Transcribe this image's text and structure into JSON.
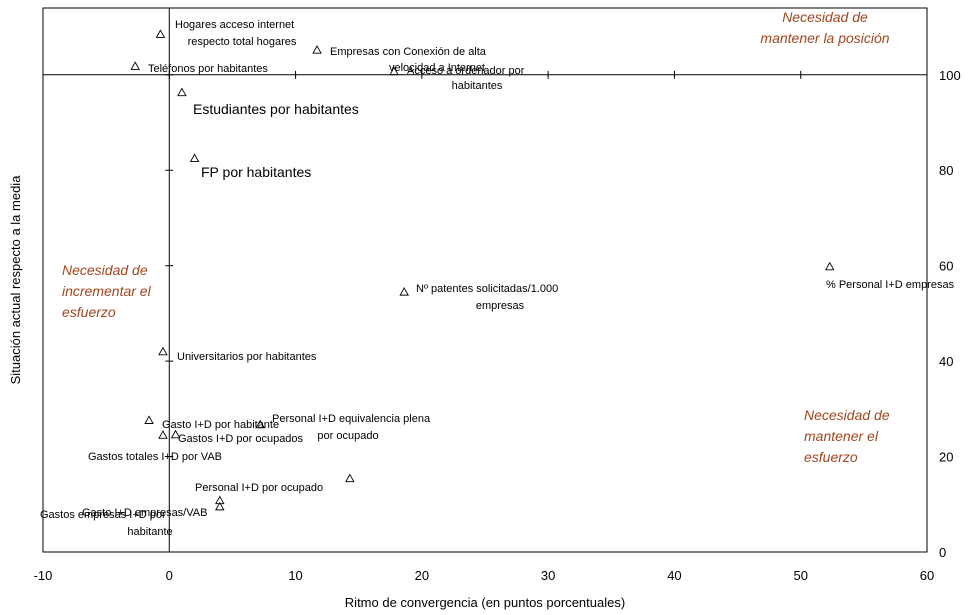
{
  "chart_data": {
    "type": "scatter",
    "xlabel": "Ritmo de convergencia (en puntos porcentuales)",
    "ylabel": "Situación actual respecto a la media",
    "xlim": [
      -10,
      60
    ],
    "ylim": [
      0,
      114
    ],
    "x_ticks": [
      -10,
      0,
      10,
      20,
      30,
      40,
      50,
      60
    ],
    "y_ticks": [
      0,
      20,
      40,
      60,
      80,
      100
    ],
    "origin": {
      "x": 0,
      "y": 100
    },
    "grid": false,
    "marker": "triangle",
    "points": [
      {
        "label": [
          "Hogares acceso internet",
          "respecto total hogares"
        ],
        "x": -0.7,
        "y": 108.5
      },
      {
        "label": [
          "Teléfonos por  habitantes"
        ],
        "x": -2.7,
        "y": 101.8
      },
      {
        "label": [
          "Empresas con Conexión de alta",
          "velocidad a Internet"
        ],
        "x": 11.7,
        "y": 105.2
      },
      {
        "label": [
          "Acceso a ordenador por",
          "habitantes"
        ],
        "x": 17.8,
        "y": 100.7
      },
      {
        "label": [
          "Estudiantes por habitantes"
        ],
        "x": 1.0,
        "y": 96.3
      },
      {
        "label": [
          "FP por  habitantes"
        ],
        "x": 2.0,
        "y": 82.5
      },
      {
        "label": [
          "% Personal I+D empresas"
        ],
        "x": 52.3,
        "y": 59.8
      },
      {
        "label": [
          "Nº patentes solicitadas/1.000",
          "empresas"
        ],
        "x": 18.6,
        "y": 54.5
      },
      {
        "label": [
          "Universitarios por  habitantes"
        ],
        "x": -0.5,
        "y": 42.0
      },
      {
        "label": [
          "Gasto I+D por habitante"
        ],
        "x": -1.6,
        "y": 27.6
      },
      {
        "label": [
          "Personal I+D equivalencia plena",
          "por ocupado"
        ],
        "x": 7.2,
        "y": 26.7
      },
      {
        "label": [
          "Gastos I+D por ocupados"
        ],
        "x": 0.5,
        "y": 24.6
      },
      {
        "label": [
          "Gastos totales I+D por VAB"
        ],
        "x": -0.5,
        "y": 24.5
      },
      {
        "label": [
          "Personal I+D por ocupado"
        ],
        "x": 14.3,
        "y": 15.4
      },
      {
        "label": [
          "Gasto I+D empresas/VAB"
        ],
        "x": 4.0,
        "y": 10.8
      },
      {
        "label": [
          "Gastos empresas I+D por",
          "habitante"
        ],
        "x": 4.0,
        "y": 9.5
      }
    ],
    "annotations": [
      {
        "lines": [
          "Necesidad de",
          "mantener la posición"
        ]
      },
      {
        "lines": [
          "Necesidad de",
          "incrementar el",
          "esfuerzo"
        ]
      },
      {
        "lines": [
          "Necesidad de",
          "mantener el",
          "esfuerzo"
        ]
      }
    ]
  }
}
